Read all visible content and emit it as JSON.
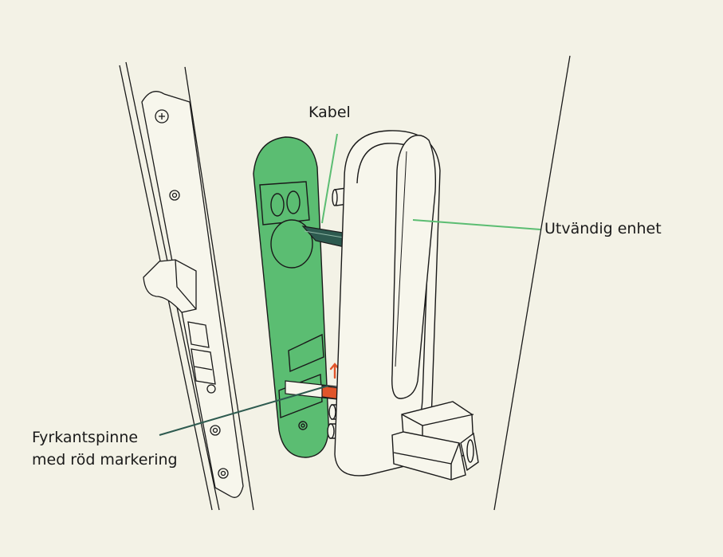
{
  "labels": {
    "kabel": "Kabel",
    "utvandig": "Utvändig enhet",
    "fyrkant_line1": "Fyrkantspinne",
    "fyrkant_line2": "med röd markering"
  },
  "colors": {
    "background": "#f3f2e6",
    "plate_fill": "#5bbd72",
    "leader_green": "#5bbd72",
    "leader_dark": "#2d5a4f",
    "spindle_marker": "#e0552a",
    "outline": "#1a1a1a",
    "device_fill": "#f7f6ec"
  },
  "icons": {
    "arrow": "arrow-up-icon"
  }
}
